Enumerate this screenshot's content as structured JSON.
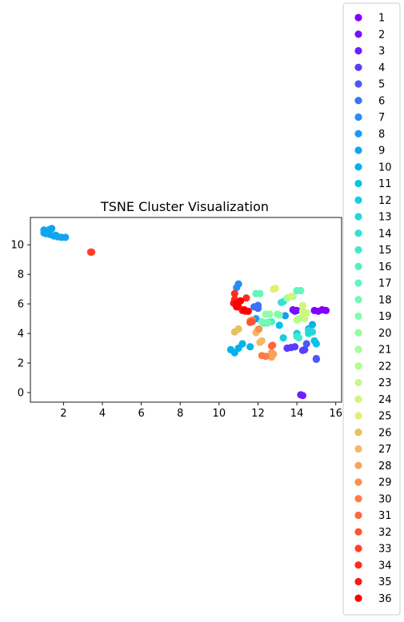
{
  "chart_data": {
    "type": "scatter",
    "title": "TSNE Cluster Visualization",
    "xlabel": "",
    "ylabel": "",
    "xlim": [
      0.3,
      16.3
    ],
    "ylim": [
      -0.65,
      11.85
    ],
    "xticks": [
      2,
      4,
      6,
      8,
      10,
      12,
      14,
      16
    ],
    "yticks": [
      0,
      2,
      4,
      6,
      8,
      10
    ],
    "legend_position": "right",
    "series": [
      {
        "name": "1",
        "color": "#8000ff",
        "points": [
          [
            15.5,
            5.55
          ],
          [
            15.3,
            5.6
          ],
          [
            15.1,
            5.5
          ],
          [
            14.9,
            5.55
          ]
        ]
      },
      {
        "name": "2",
        "color": "#7610ff",
        "points": [
          [
            14.0,
            5.55
          ],
          [
            13.8,
            5.6
          ],
          [
            13.9,
            5.5
          ]
        ]
      },
      {
        "name": "3",
        "color": "#6c1fff",
        "points": [
          [
            14.2,
            -0.15
          ],
          [
            14.3,
            -0.2
          ]
        ]
      },
      {
        "name": "4",
        "color": "#5a3cfe",
        "points": [
          [
            13.5,
            3.0
          ],
          [
            13.7,
            3.05
          ],
          [
            13.9,
            3.1
          ],
          [
            14.4,
            2.9
          ],
          [
            14.3,
            2.85
          ]
        ]
      },
      {
        "name": "5",
        "color": "#4a59fc",
        "points": [
          [
            15.0,
            2.3
          ],
          [
            15.0,
            2.25
          ],
          [
            14.5,
            3.3
          ]
        ]
      },
      {
        "name": "6",
        "color": "#3a72f9",
        "points": [
          [
            11.8,
            5.8
          ],
          [
            12.0,
            5.7
          ],
          [
            12.0,
            5.9
          ]
        ]
      },
      {
        "name": "7",
        "color": "#2a8bf6",
        "points": [
          [
            10.9,
            7.1
          ],
          [
            11.0,
            7.35
          ]
        ]
      },
      {
        "name": "8",
        "color": "#1e99f3",
        "points": [
          [
            11.9,
            5.0
          ],
          [
            13.4,
            5.2
          ],
          [
            14.6,
            4.3
          ]
        ]
      },
      {
        "name": "9",
        "color": "#10a6ef",
        "points": [
          [
            1.0,
            10.8
          ],
          [
            1.2,
            10.9
          ],
          [
            1.3,
            10.7
          ],
          [
            1.5,
            10.6
          ],
          [
            1.7,
            10.55
          ],
          [
            1.9,
            10.5
          ],
          [
            2.1,
            10.5
          ],
          [
            1.0,
            11.0
          ],
          [
            1.4,
            11.1
          ],
          [
            1.1,
            10.75
          ],
          [
            1.3,
            11.05
          ],
          [
            1.6,
            10.65
          ]
        ]
      },
      {
        "name": "10",
        "color": "#00b4eb",
        "points": [
          [
            10.6,
            2.9
          ],
          [
            10.8,
            2.7
          ],
          [
            11.0,
            3.0
          ],
          [
            11.2,
            3.3
          ],
          [
            11.6,
            3.1
          ],
          [
            14.8,
            4.6
          ]
        ]
      },
      {
        "name": "11",
        "color": "#0ac2e6",
        "points": [
          [
            13.1,
            4.55
          ],
          [
            14.9,
            3.5
          ],
          [
            15.0,
            3.3
          ]
        ]
      },
      {
        "name": "12",
        "color": "#18cde0",
        "points": [
          [
            13.3,
            3.7
          ],
          [
            14.0,
            4.0
          ]
        ]
      },
      {
        "name": "13",
        "color": "#26d7da",
        "points": [
          [
            14.6,
            4.0
          ],
          [
            14.8,
            4.1
          ],
          [
            14.6,
            4.2
          ]
        ]
      },
      {
        "name": "14",
        "color": "#34e1d3",
        "points": [
          [
            13.2,
            6.1
          ],
          [
            13.3,
            6.15
          ]
        ]
      },
      {
        "name": "15",
        "color": "#42e9cc",
        "points": [
          [
            14.0,
            3.8
          ],
          [
            14.1,
            3.7
          ]
        ]
      },
      {
        "name": "16",
        "color": "#52f0c4",
        "points": [
          [
            12.3,
            4.7
          ],
          [
            12.5,
            4.75
          ],
          [
            12.7,
            4.8
          ]
        ]
      },
      {
        "name": "17",
        "color": "#62f5bc",
        "points": [
          [
            11.9,
            6.7
          ],
          [
            12.1,
            6.7
          ],
          [
            14.2,
            6.9
          ],
          [
            14.0,
            6.9
          ]
        ]
      },
      {
        "name": "18",
        "color": "#72f9b4",
        "points": [
          [
            12.2,
            4.8
          ],
          [
            12.5,
            4.7
          ]
        ]
      },
      {
        "name": "19",
        "color": "#82fcab",
        "points": [
          [
            13.0,
            5.3
          ],
          [
            13.1,
            5.25
          ]
        ]
      },
      {
        "name": "20",
        "color": "#92fea2",
        "points": [
          [
            12.4,
            5.3
          ],
          [
            12.6,
            5.3
          ]
        ]
      },
      {
        "name": "21",
        "color": "#a2ff99",
        "points": [
          [
            13.5,
            6.4
          ],
          [
            13.8,
            6.5
          ],
          [
            14.1,
            5.0
          ]
        ]
      },
      {
        "name": "22",
        "color": "#b2fe8f",
        "points": [
          [
            14.0,
            4.9
          ],
          [
            14.3,
            5.1
          ]
        ]
      },
      {
        "name": "23",
        "color": "#c2fb85",
        "points": [
          [
            14.3,
            5.5
          ],
          [
            14.5,
            5.4
          ],
          [
            14.4,
            5.0
          ]
        ]
      },
      {
        "name": "24",
        "color": "#d2f67b",
        "points": [
          [
            13.7,
            6.5
          ],
          [
            14.3,
            5.9
          ],
          [
            14.4,
            5.2
          ]
        ]
      },
      {
        "name": "25",
        "color": "#e2ef72",
        "points": [
          [
            12.8,
            7.0
          ],
          [
            12.9,
            7.05
          ]
        ]
      },
      {
        "name": "26",
        "color": "#e8c05c",
        "points": [
          [
            10.8,
            4.1
          ],
          [
            11.0,
            4.3
          ]
        ]
      },
      {
        "name": "27",
        "color": "#f4b766",
        "points": [
          [
            11.9,
            4.05
          ],
          [
            12.0,
            4.25
          ],
          [
            12.2,
            3.5
          ],
          [
            12.1,
            3.4
          ]
        ]
      },
      {
        "name": "28",
        "color": "#f8a35c",
        "points": [
          [
            12.7,
            2.4
          ],
          [
            12.7,
            2.7
          ],
          [
            12.8,
            2.6
          ]
        ]
      },
      {
        "name": "29",
        "color": "#fc8f52",
        "points": [
          [
            11.6,
            4.85
          ],
          [
            11.7,
            4.9
          ],
          [
            12.05,
            4.3
          ]
        ]
      },
      {
        "name": "30",
        "color": "#ff7b47",
        "points": [
          [
            12.2,
            2.5
          ],
          [
            12.4,
            2.45
          ]
        ]
      },
      {
        "name": "31",
        "color": "#ff673c",
        "points": [
          [
            12.7,
            3.15
          ],
          [
            12.75,
            3.2
          ]
        ]
      },
      {
        "name": "32",
        "color": "#ff5331",
        "points": [
          [
            11.7,
            4.8
          ],
          [
            11.6,
            4.75
          ]
        ]
      },
      {
        "name": "33",
        "color": "#ff3f26",
        "points": [
          [
            3.4,
            9.5
          ],
          [
            3.45,
            9.5
          ]
        ]
      },
      {
        "name": "34",
        "color": "#ff2b1b",
        "points": [
          [
            10.8,
            6.7
          ],
          [
            11.4,
            6.4
          ],
          [
            10.8,
            6.3
          ]
        ]
      },
      {
        "name": "35",
        "color": "#ff170f",
        "points": [
          [
            10.75,
            6.05
          ],
          [
            11.0,
            5.8
          ],
          [
            11.2,
            5.55
          ],
          [
            11.35,
            5.5
          ]
        ]
      },
      {
        "name": "36",
        "color": "#ff0000",
        "points": [
          [
            10.9,
            6.0
          ],
          [
            11.1,
            6.2
          ],
          [
            11.3,
            5.6
          ],
          [
            11.5,
            5.5
          ],
          [
            10.9,
            5.8
          ]
        ]
      }
    ]
  }
}
